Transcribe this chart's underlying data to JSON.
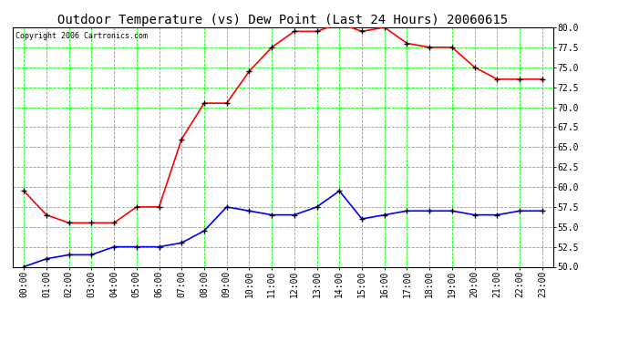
{
  "title": "Outdoor Temperature (vs) Dew Point (Last 24 Hours) 20060615",
  "copyright": "Copyright 2006 Cartronics.com",
  "x_labels": [
    "00:00",
    "01:00",
    "02:00",
    "03:00",
    "04:00",
    "05:00",
    "06:00",
    "07:00",
    "08:00",
    "09:00",
    "10:00",
    "11:00",
    "12:00",
    "13:00",
    "14:00",
    "15:00",
    "16:00",
    "17:00",
    "18:00",
    "19:00",
    "20:00",
    "21:00",
    "22:00",
    "23:00"
  ],
  "temp_red": [
    59.5,
    56.5,
    55.5,
    55.5,
    55.5,
    57.5,
    57.5,
    66.0,
    70.5,
    70.5,
    74.5,
    77.5,
    79.5,
    79.5,
    80.5,
    79.5,
    80.0,
    78.0,
    77.5,
    77.5,
    75.0,
    73.5,
    73.5,
    73.5
  ],
  "dew_blue": [
    50.0,
    51.0,
    51.5,
    51.5,
    52.5,
    52.5,
    52.5,
    53.0,
    54.5,
    57.5,
    57.0,
    56.5,
    56.5,
    57.5,
    59.5,
    56.0,
    56.5,
    57.0,
    57.0,
    57.0,
    56.5,
    56.5,
    57.0,
    57.0
  ],
  "ylim": [
    50.0,
    80.0
  ],
  "yticks": [
    50.0,
    52.5,
    55.0,
    57.5,
    60.0,
    62.5,
    65.0,
    67.5,
    70.0,
    72.5,
    75.0,
    77.5,
    80.0
  ],
  "bg_color": "#ffffff",
  "grid_color": "#00ff00",
  "line_color_red": "#ff0000",
  "line_color_blue": "#0000ff",
  "marker_color": "#000000",
  "title_fontsize": 10,
  "copyright_fontsize": 6,
  "tick_fontsize": 7
}
